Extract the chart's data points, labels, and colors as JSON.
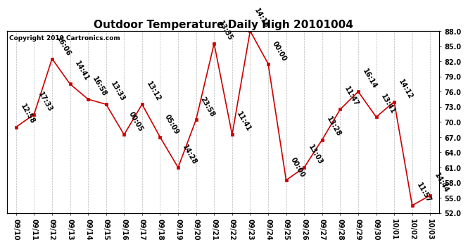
{
  "title": "Outdoor Temperature Daily High 20101004",
  "copyright_text": "Copyright 2010 Cartronics.com",
  "x_labels": [
    "09/10",
    "09/11",
    "09/12",
    "09/13",
    "09/14",
    "09/15",
    "09/16",
    "09/17",
    "09/18",
    "09/19",
    "09/20",
    "09/21",
    "09/22",
    "09/23",
    "09/24",
    "09/25",
    "09/26",
    "09/27",
    "09/28",
    "09/29",
    "09/30",
    "10/01",
    "10/02",
    "10/03"
  ],
  "y_values": [
    69.0,
    71.5,
    82.5,
    77.5,
    74.5,
    73.5,
    67.5,
    73.5,
    67.0,
    61.0,
    70.5,
    85.5,
    67.5,
    88.0,
    81.5,
    58.5,
    61.0,
    66.5,
    72.5,
    76.0,
    71.0,
    74.0,
    53.5,
    55.5
  ],
  "time_labels": [
    "12:58",
    "17:33",
    "16:06",
    "14:41",
    "16:58",
    "13:33",
    "00:05",
    "13:12",
    "05:09",
    "14:28",
    "23:58",
    "13:35",
    "11:41",
    "14:10",
    "00:00",
    "00:00",
    "13:03",
    "13:28",
    "11:47",
    "16:14",
    "13:41",
    "14:12",
    "11:57",
    "14:44"
  ],
  "line_color": "#cc0000",
  "marker_color": "#cc0000",
  "bg_color": "#ffffff",
  "grid_color": "#bbbbbb",
  "ylim_min": 52.0,
  "ylim_max": 88.0,
  "ytick_step": 3.0,
  "title_fontsize": 11,
  "label_fontsize": 7,
  "annotation_fontsize": 7,
  "copyright_fontsize": 6.5
}
